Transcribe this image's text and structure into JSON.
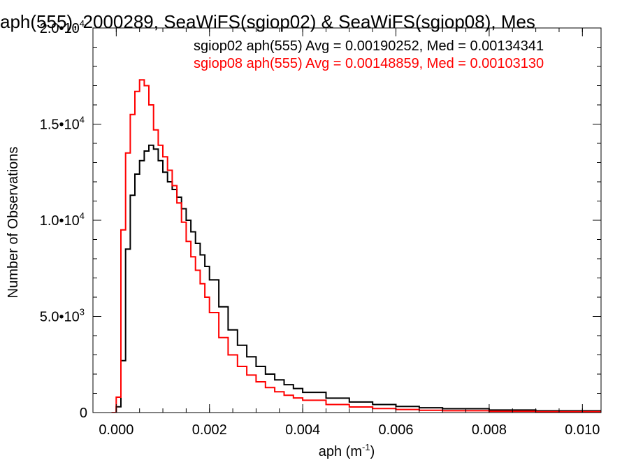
{
  "chart_data": {
    "type": "line",
    "title": "aph(555), 2000289, SeaWiFS(sgiop02) & SeaWiFS(sgiop08), Mes",
    "xlabel": "aph (m",
    "xlabel_exp": "-1",
    "xlabel_end": ")",
    "ylabel": "Number of Observations",
    "xlim": [
      -0.0005,
      0.0104
    ],
    "ylim": [
      0,
      20000
    ],
    "xticks": [
      {
        "value": 0.0,
        "label": "0.000"
      },
      {
        "value": 0.002,
        "label": "0.002"
      },
      {
        "value": 0.004,
        "label": "0.004"
      },
      {
        "value": 0.006,
        "label": "0.006"
      },
      {
        "value": 0.008,
        "label": "0.008"
      },
      {
        "value": 0.01,
        "label": "0.010"
      }
    ],
    "yticks": [
      {
        "value": 0,
        "label": "0",
        "exp": ""
      },
      {
        "value": 5000,
        "label": "5.0•10",
        "exp": "3"
      },
      {
        "value": 10000,
        "label": "1.0•10",
        "exp": "4"
      },
      {
        "value": 15000,
        "label": "1.5•10",
        "exp": "4"
      },
      {
        "value": 20000,
        "label": "2.0•10",
        "exp": "4"
      }
    ],
    "grid": false,
    "legend_position": "top-right",
    "series": [
      {
        "name": "sgiop02 aph(555) Avg = 0.00190252, Med = 0.00134341",
        "color": "#000000",
        "x": [
          -0.0001,
          0.0,
          0.0001,
          0.0002,
          0.0003,
          0.0004,
          0.0005,
          0.0006,
          0.0007,
          0.0008,
          0.0009,
          0.001,
          0.0011,
          0.0012,
          0.0013,
          0.0014,
          0.0015,
          0.0016,
          0.0017,
          0.0018,
          0.0019,
          0.002,
          0.0022,
          0.0024,
          0.0026,
          0.0028,
          0.003,
          0.0032,
          0.0034,
          0.0036,
          0.0038,
          0.004,
          0.0045,
          0.005,
          0.0055,
          0.006,
          0.0065,
          0.007,
          0.008,
          0.009,
          0.0104
        ],
        "y": [
          0,
          300,
          2700,
          8500,
          11300,
          12400,
          13100,
          13600,
          13900,
          13700,
          13100,
          12500,
          12000,
          11600,
          11200,
          10600,
          10000,
          9400,
          8800,
          8200,
          7600,
          6900,
          5500,
          4300,
          3500,
          2900,
          2400,
          2000,
          1700,
          1450,
          1250,
          1050,
          750,
          550,
          420,
          320,
          250,
          200,
          130,
          90,
          50
        ]
      },
      {
        "name": "sgiop08 aph(555) Avg = 0.00148859, Med = 0.00103130",
        "color": "#ff0000",
        "x": [
          -0.0001,
          0.0,
          0.0001,
          0.0002,
          0.0003,
          0.0004,
          0.0005,
          0.0006,
          0.0007,
          0.0008,
          0.0009,
          0.001,
          0.0011,
          0.0012,
          0.0013,
          0.0014,
          0.0015,
          0.0016,
          0.0017,
          0.0018,
          0.0019,
          0.002,
          0.0022,
          0.0024,
          0.0026,
          0.0028,
          0.003,
          0.0032,
          0.0034,
          0.0036,
          0.0038,
          0.004,
          0.0045,
          0.005,
          0.0055,
          0.006,
          0.0065,
          0.007,
          0.008,
          0.009,
          0.0104
        ],
        "y": [
          0,
          800,
          9500,
          13500,
          15500,
          16700,
          17300,
          17000,
          16000,
          14700,
          13900,
          13300,
          12600,
          11800,
          10900,
          9900,
          8900,
          8100,
          7400,
          6700,
          6000,
          5200,
          3900,
          3000,
          2400,
          1950,
          1600,
          1300,
          1080,
          900,
          760,
          640,
          420,
          290,
          210,
          160,
          120,
          95,
          65,
          45,
          30
        ]
      }
    ]
  }
}
